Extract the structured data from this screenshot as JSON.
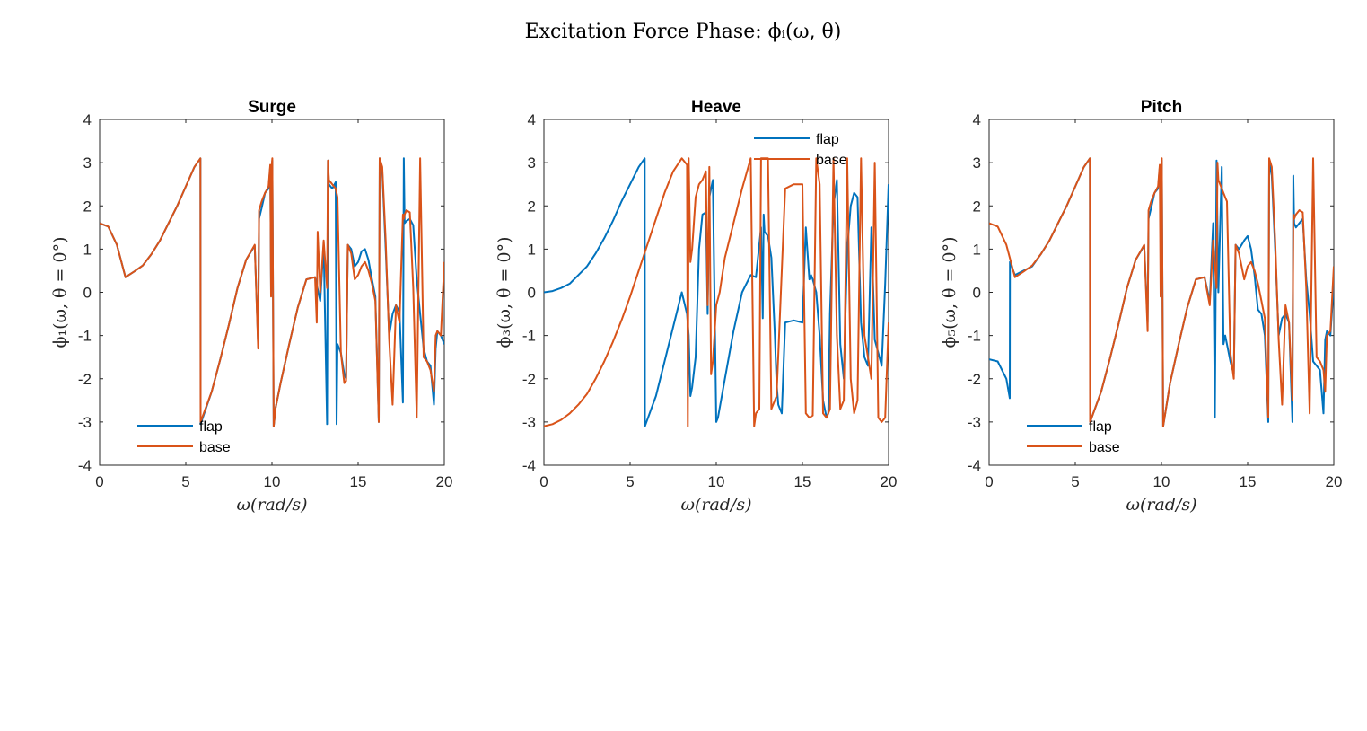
{
  "figure": {
    "title": "Excitation Force Phase: ϕᵢ(ω, θ)"
  },
  "chart_data": [
    {
      "type": "line",
      "title": "Surge",
      "xlabel": "ω(rad/s)",
      "ylabel": "ϕ₁(ω, θ = 0°)",
      "xlim": [
        0,
        20
      ],
      "ylim": [
        -4,
        4
      ],
      "xticks": [
        "0",
        "5",
        "10",
        "15",
        "20"
      ],
      "yticks": [
        "-4",
        "-3",
        "-2",
        "-1",
        "0",
        "1",
        "2",
        "3",
        "4"
      ],
      "grid": false,
      "legend": "bottom-left",
      "series": [
        {
          "name": "flap",
          "color": "#0072BD",
          "x": [
            0,
            0.5,
            1.0,
            1.5,
            2.0,
            2.5,
            3.0,
            3.5,
            4.0,
            4.5,
            5.0,
            5.5,
            5.85,
            5.86,
            6.5,
            7.0,
            7.5,
            8.0,
            8.5,
            9.0,
            9.2,
            9.25,
            9.4,
            9.6,
            9.8,
            9.9,
            9.95,
            10.0,
            10.02,
            10.1,
            10.15,
            10.2,
            10.5,
            11.0,
            11.5,
            12.0,
            12.5,
            12.8,
            13.0,
            13.2,
            13.25,
            13.3,
            13.5,
            13.7,
            13.75,
            13.8,
            14.0,
            14.2,
            14.3,
            14.4,
            14.6,
            14.8,
            15.0,
            15.2,
            15.4,
            15.6,
            15.8,
            16.0,
            16.2,
            16.25,
            16.4,
            16.6,
            16.8,
            17.0,
            17.2,
            17.4,
            17.6,
            17.65,
            17.7,
            17.8,
            18.0,
            18.2,
            18.4,
            18.6,
            18.8,
            19.0,
            19.2,
            19.4,
            19.5,
            19.6,
            19.8,
            20.0
          ],
          "y": [
            1.6,
            1.52,
            1.1,
            0.35,
            0.48,
            0.62,
            0.88,
            1.2,
            1.6,
            2.0,
            2.45,
            2.9,
            3.1,
            -3.05,
            -2.3,
            -1.55,
            -0.75,
            0.1,
            0.75,
            1.08,
            -1.2,
            1.7,
            1.95,
            2.3,
            2.4,
            2.9,
            0.0,
            2.95,
            3.05,
            -3.1,
            -2.9,
            -2.7,
            -2.1,
            -1.2,
            -0.35,
            0.3,
            0.35,
            -0.2,
            1.1,
            -3.05,
            3.05,
            2.5,
            2.4,
            2.55,
            -3.05,
            -1.2,
            -1.4,
            -1.9,
            -2.0,
            1.1,
            1.0,
            0.6,
            0.7,
            0.95,
            1.0,
            0.75,
            0.3,
            -0.1,
            -3.0,
            3.1,
            2.8,
            1.0,
            -1.0,
            -0.5,
            -0.3,
            -0.45,
            -2.55,
            3.1,
            1.6,
            1.65,
            1.7,
            1.55,
            0.3,
            -0.5,
            -1.3,
            -1.6,
            -1.7,
            -2.6,
            -1.3,
            -0.9,
            -1.0,
            -1.2
          ]
        },
        {
          "name": "base",
          "color": "#D95319",
          "x": [
            0,
            0.5,
            1.0,
            1.5,
            2.0,
            2.5,
            3.0,
            3.5,
            4.0,
            4.5,
            5.0,
            5.5,
            5.85,
            5.86,
            6.5,
            7.0,
            7.5,
            8.0,
            8.5,
            9.0,
            9.2,
            9.25,
            9.4,
            9.6,
            9.8,
            9.9,
            9.95,
            10.0,
            10.02,
            10.1,
            10.15,
            10.2,
            10.5,
            11.0,
            11.5,
            12.0,
            12.5,
            12.6,
            12.65,
            12.8,
            13.0,
            13.2,
            13.25,
            13.3,
            13.5,
            13.7,
            13.75,
            13.8,
            14.0,
            14.2,
            14.3,
            14.4,
            14.6,
            14.8,
            15.0,
            15.2,
            15.4,
            15.6,
            15.8,
            16.0,
            16.2,
            16.25,
            16.4,
            16.6,
            16.8,
            17.0,
            17.2,
            17.4,
            17.6,
            17.65,
            17.7,
            17.8,
            18.0,
            18.2,
            18.4,
            18.6,
            18.8,
            19.0,
            19.2,
            19.4,
            19.5,
            19.6,
            19.8,
            20.0
          ],
          "y": [
            1.6,
            1.52,
            1.1,
            0.35,
            0.48,
            0.62,
            0.88,
            1.2,
            1.6,
            2.0,
            2.45,
            2.9,
            3.1,
            -3.0,
            -2.3,
            -1.55,
            -0.75,
            0.1,
            0.75,
            1.1,
            -1.3,
            1.9,
            2.1,
            2.3,
            2.45,
            2.95,
            -0.1,
            3.0,
            3.1,
            -3.1,
            -2.9,
            -2.7,
            -2.1,
            -1.2,
            -0.35,
            0.3,
            0.35,
            -0.7,
            1.4,
            0.0,
            1.2,
            0.1,
            3.05,
            2.6,
            2.5,
            2.4,
            2.3,
            2.2,
            -1.4,
            -2.1,
            -2.05,
            1.1,
            0.9,
            0.3,
            0.4,
            0.6,
            0.7,
            0.5,
            0.2,
            -0.2,
            -3.0,
            3.1,
            2.9,
            1.2,
            -1.1,
            -2.6,
            -0.3,
            -0.7,
            1.8,
            1.7,
            1.8,
            1.9,
            1.85,
            0.1,
            -2.9,
            3.1,
            -1.5,
            -1.6,
            -1.8,
            -2.3,
            -1.0,
            -0.9,
            -1.0,
            0.7
          ]
        }
      ]
    },
    {
      "type": "line",
      "title": "Heave",
      "xlabel": "ω(rad/s)",
      "ylabel": "ϕ₃(ω, θ = 0°)",
      "xlim": [
        0,
        20
      ],
      "ylim": [
        -4,
        4
      ],
      "xticks": [
        "0",
        "5",
        "10",
        "15",
        "20"
      ],
      "yticks": [
        "-4",
        "-3",
        "-2",
        "-1",
        "0",
        "1",
        "2",
        "3",
        "4"
      ],
      "grid": false,
      "legend": "top-right",
      "series": [
        {
          "name": "flap",
          "color": "#0072BD",
          "x": [
            0,
            0.5,
            1.0,
            1.5,
            2.0,
            2.5,
            3.0,
            3.5,
            4.0,
            4.5,
            5.0,
            5.5,
            5.85,
            5.86,
            6.5,
            7.0,
            7.5,
            8.0,
            8.3,
            8.4,
            8.5,
            8.6,
            8.8,
            9.0,
            9.2,
            9.4,
            9.5,
            9.6,
            9.8,
            10.0,
            10.1,
            10.5,
            11.0,
            11.5,
            12.0,
            12.3,
            12.6,
            12.7,
            12.75,
            12.8,
            13.0,
            13.2,
            13.4,
            13.5,
            13.6,
            13.8,
            14.0,
            14.5,
            15.0,
            15.2,
            15.4,
            15.5,
            15.6,
            15.8,
            16.0,
            16.2,
            16.4,
            16.5,
            16.6,
            16.8,
            17.0,
            17.2,
            17.4,
            17.6,
            17.8,
            18.0,
            18.2,
            18.4,
            18.6,
            18.8,
            19.0,
            19.2,
            19.4,
            19.6,
            19.8,
            20.0
          ],
          "y": [
            0.0,
            0.03,
            0.1,
            0.2,
            0.4,
            0.6,
            0.9,
            1.25,
            1.65,
            2.1,
            2.5,
            2.9,
            3.1,
            -3.1,
            -2.4,
            -1.6,
            -0.8,
            0.0,
            -0.5,
            -1.0,
            -2.4,
            -2.2,
            -1.5,
            1.0,
            1.8,
            1.85,
            -0.5,
            2.2,
            2.6,
            -3.0,
            -2.9,
            -2.0,
            -0.9,
            0.0,
            0.4,
            0.35,
            1.5,
            -0.6,
            1.8,
            1.4,
            1.3,
            0.8,
            -1.0,
            -2.1,
            -2.6,
            -2.8,
            -0.7,
            -0.65,
            -0.7,
            1.5,
            0.3,
            0.4,
            0.3,
            0.0,
            -1.0,
            -2.5,
            -2.9,
            -2.8,
            -0.5,
            2.0,
            2.6,
            -1.2,
            -2.0,
            1.0,
            2.0,
            2.3,
            2.2,
            -0.7,
            -1.5,
            -1.7,
            1.5,
            -1.1,
            -1.4,
            -1.7,
            0.2,
            2.5
          ]
        },
        {
          "name": "base",
          "color": "#D95319",
          "x": [
            0,
            0.5,
            1.0,
            1.5,
            2.0,
            2.5,
            3.0,
            3.5,
            4.0,
            4.5,
            5.0,
            5.5,
            6.0,
            6.5,
            7.0,
            7.5,
            8.0,
            8.3,
            8.35,
            8.4,
            8.5,
            8.6,
            8.8,
            9.0,
            9.2,
            9.4,
            9.5,
            9.6,
            9.7,
            9.8,
            10.0,
            10.2,
            10.5,
            11.0,
            11.5,
            12.0,
            12.2,
            12.3,
            12.5,
            12.6,
            12.8,
            13.0,
            13.2,
            13.5,
            14.0,
            14.5,
            15.0,
            15.2,
            15.4,
            15.6,
            15.8,
            16.0,
            16.2,
            16.4,
            16.6,
            16.8,
            17.0,
            17.2,
            17.4,
            17.6,
            17.8,
            18.0,
            18.2,
            18.4,
            18.6,
            18.8,
            19.0,
            19.2,
            19.4,
            19.6,
            19.8,
            20.0
          ],
          "y": [
            -3.1,
            -3.05,
            -2.95,
            -2.8,
            -2.6,
            -2.35,
            -2.0,
            -1.6,
            -1.15,
            -0.65,
            -0.1,
            0.5,
            1.1,
            1.7,
            2.3,
            2.8,
            3.1,
            2.95,
            -3.1,
            3.1,
            0.7,
            1.0,
            2.2,
            2.5,
            2.6,
            2.8,
            -0.3,
            2.9,
            -1.9,
            -1.6,
            -0.3,
            0.0,
            0.8,
            1.6,
            2.4,
            3.1,
            -3.1,
            -2.8,
            -2.7,
            3.1,
            3.1,
            3.1,
            -2.7,
            -2.4,
            2.4,
            2.5,
            2.5,
            -2.8,
            -2.9,
            -2.85,
            3.1,
            2.5,
            -2.8,
            -2.9,
            -2.7,
            3.1,
            -1.0,
            -2.7,
            -2.5,
            3.1,
            -2.0,
            -2.8,
            -2.5,
            3.1,
            -1.0,
            -1.5,
            -2.0,
            3.0,
            -2.9,
            -3.0,
            -2.9,
            -0.7
          ]
        }
      ]
    },
    {
      "type": "line",
      "title": "Pitch",
      "xlabel": "ω(rad/s)",
      "ylabel": "ϕ₅(ω, θ = 0°)",
      "xlim": [
        0,
        20
      ],
      "ylim": [
        -4,
        4
      ],
      "xticks": [
        "0",
        "5",
        "10",
        "15",
        "20"
      ],
      "yticks": [
        "-4",
        "-3",
        "-2",
        "-1",
        "0",
        "1",
        "2",
        "3",
        "4"
      ],
      "grid": false,
      "legend": "bottom-left",
      "series": [
        {
          "name": "flap",
          "color": "#0072BD",
          "x": [
            0,
            0.5,
            1.0,
            1.2,
            1.21,
            1.5,
            2.0,
            2.5,
            3.0,
            3.5,
            4.0,
            4.5,
            5.0,
            5.5,
            5.85,
            5.86,
            6.5,
            7.0,
            7.5,
            8.0,
            8.5,
            9.0,
            9.2,
            9.25,
            9.4,
            9.6,
            9.8,
            9.9,
            9.95,
            10.0,
            10.02,
            10.1,
            10.5,
            11.0,
            11.5,
            12.0,
            12.5,
            12.8,
            13.0,
            13.1,
            13.2,
            13.3,
            13.5,
            13.6,
            13.7,
            13.8,
            14.0,
            14.2,
            14.3,
            14.5,
            14.8,
            15.0,
            15.2,
            15.4,
            15.6,
            15.8,
            16.0,
            16.2,
            16.25,
            16.4,
            16.6,
            16.8,
            17.0,
            17.2,
            17.4,
            17.6,
            17.65,
            17.7,
            17.8,
            18.0,
            18.2,
            18.4,
            18.6,
            18.8,
            19.0,
            19.2,
            19.4,
            19.5,
            19.6,
            19.8,
            20.0
          ],
          "y": [
            -1.55,
            -1.6,
            -2.0,
            -2.45,
            0.7,
            0.4,
            0.5,
            0.6,
            0.88,
            1.2,
            1.6,
            2.0,
            2.45,
            2.9,
            3.1,
            -3.0,
            -2.3,
            -1.55,
            -0.75,
            0.1,
            0.75,
            1.08,
            -0.7,
            1.7,
            1.95,
            2.3,
            2.4,
            2.9,
            2.0,
            2.95,
            3.05,
            -3.1,
            -2.1,
            -1.2,
            -0.35,
            0.3,
            0.35,
            -0.2,
            1.6,
            -2.9,
            3.05,
            0.0,
            2.9,
            -1.2,
            -1.0,
            -1.2,
            -1.6,
            -1.9,
            1.1,
            1.0,
            1.2,
            1.3,
            1.0,
            0.4,
            -0.4,
            -0.5,
            -1.0,
            -3.0,
            3.0,
            2.7,
            1.0,
            -1.0,
            -0.6,
            -0.5,
            -0.7,
            -3.0,
            2.7,
            1.6,
            1.5,
            1.6,
            1.7,
            0.3,
            -0.5,
            -1.6,
            -1.7,
            -1.8,
            -2.8,
            -1.1,
            -0.9,
            -1.0,
            0.2
          ]
        },
        {
          "name": "base",
          "color": "#D95319",
          "x": [
            0,
            0.5,
            1.0,
            1.5,
            2.0,
            2.5,
            3.0,
            3.5,
            4.0,
            4.5,
            5.0,
            5.5,
            5.85,
            5.86,
            6.5,
            7.0,
            7.5,
            8.0,
            8.5,
            9.0,
            9.2,
            9.25,
            9.4,
            9.6,
            9.8,
            9.9,
            9.95,
            10.0,
            10.02,
            10.1,
            10.5,
            11.0,
            11.5,
            12.0,
            12.5,
            12.8,
            13.0,
            13.2,
            13.25,
            13.3,
            13.5,
            13.7,
            13.8,
            14.0,
            14.2,
            14.3,
            14.5,
            14.8,
            15.0,
            15.2,
            15.4,
            15.6,
            15.8,
            16.0,
            16.2,
            16.25,
            16.4,
            16.6,
            16.8,
            17.0,
            17.2,
            17.4,
            17.6,
            17.65,
            17.7,
            17.8,
            18.0,
            18.2,
            18.4,
            18.6,
            18.8,
            19.0,
            19.2,
            19.4,
            19.5,
            19.6,
            19.8,
            20.0
          ],
          "y": [
            1.6,
            1.52,
            1.1,
            0.35,
            0.48,
            0.62,
            0.88,
            1.2,
            1.6,
            2.0,
            2.45,
            2.9,
            3.1,
            -3.0,
            -2.3,
            -1.55,
            -0.75,
            0.1,
            0.75,
            1.1,
            -0.9,
            1.9,
            2.1,
            2.3,
            2.45,
            2.95,
            -0.1,
            3.0,
            3.1,
            -3.1,
            -2.1,
            -1.2,
            -0.35,
            0.3,
            0.35,
            -0.3,
            1.2,
            0.1,
            3.0,
            2.6,
            2.4,
            2.2,
            2.1,
            -1.4,
            -2.0,
            1.1,
            0.9,
            0.3,
            0.6,
            0.7,
            0.5,
            0.2,
            -0.2,
            -0.6,
            -2.9,
            3.1,
            2.9,
            1.2,
            -1.1,
            -2.6,
            -0.3,
            -0.7,
            -2.5,
            1.8,
            1.7,
            1.8,
            1.9,
            1.85,
            0.1,
            -2.8,
            3.1,
            -1.5,
            -1.6,
            -1.8,
            -2.3,
            -1.0,
            -0.9,
            0.6
          ]
        }
      ]
    }
  ]
}
